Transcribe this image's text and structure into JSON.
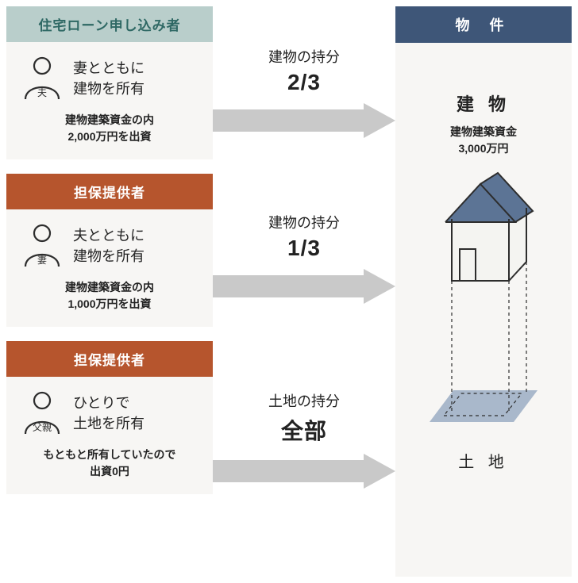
{
  "colors": {
    "applicant_header_bg": "#b9cecb",
    "applicant_header_fg": "#2e6864",
    "guarantor_header_bg": "#b6552d",
    "card_bg": "#f7f6f4",
    "property_header_bg": "#3e5678",
    "arrow_fill": "#c9c9c9",
    "house_roof": "#5c7495",
    "house_wall": "#f4f4f1",
    "house_stroke": "#2d2d2d",
    "land_fill": "#a9b8cb"
  },
  "people": [
    {
      "header": "住宅ローン申し込み者",
      "role_label": "夫",
      "main_line1": "妻とともに",
      "main_line2": "建物を所有",
      "sub_line1": "建物建築資金の内",
      "sub_line2": "2,000万円を出資",
      "header_type": "applicant"
    },
    {
      "header": "担保提供者",
      "role_label": "妻",
      "main_line1": "夫とともに",
      "main_line2": "建物を所有",
      "sub_line1": "建物建築資金の内",
      "sub_line2": "1,000万円を出資",
      "header_type": "guarantor"
    },
    {
      "header": "担保提供者",
      "role_label": "父親",
      "main_line1": "ひとりで",
      "main_line2": "土地を所有",
      "sub_line1": "もともと所有していたので",
      "sub_line2": "出資0円",
      "header_type": "guarantor"
    }
  ],
  "arrows": [
    {
      "title": "建物の持分",
      "value": "2/3"
    },
    {
      "title": "建物の持分",
      "value": "1/3"
    },
    {
      "title": "土地の持分",
      "value": "全部"
    }
  ],
  "property": {
    "header": "物 件",
    "building_title": "建 物",
    "building_sub_line1": "建物建築資金",
    "building_sub_line2": "3,000万円",
    "land_title": "土 地"
  }
}
